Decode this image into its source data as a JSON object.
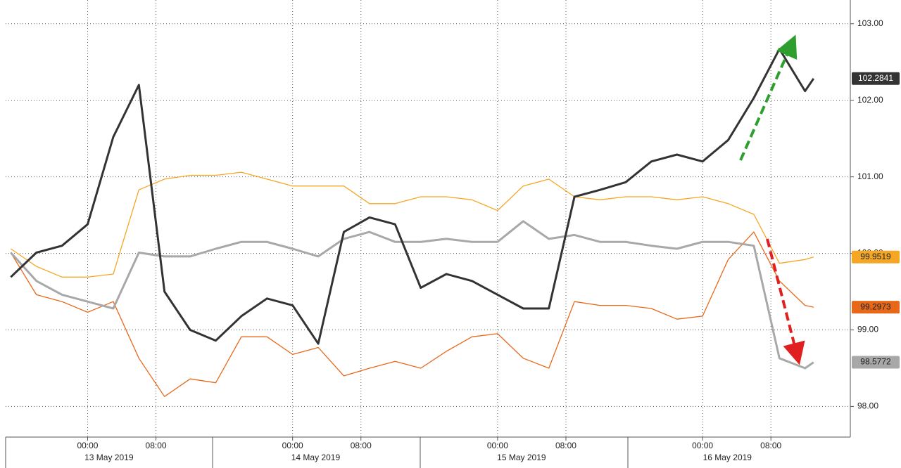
{
  "chart_data": {
    "type": "line",
    "x": [
      -9,
      -6,
      -3,
      0,
      3,
      6,
      9,
      12,
      15,
      18,
      21,
      24,
      27,
      30,
      33,
      36,
      39,
      42,
      45,
      48,
      51,
      54,
      57,
      60,
      63,
      66,
      69,
      72,
      75,
      78,
      81,
      84,
      85
    ],
    "series": [
      {
        "color": "#333333",
        "values": [
          99.69,
          100.01,
          100.1,
          100.38,
          101.52,
          102.2,
          99.5,
          99.0,
          98.86,
          99.18,
          99.41,
          99.32,
          98.82,
          100.28,
          100.47,
          100.38,
          99.55,
          99.73,
          99.64,
          99.46,
          99.28,
          99.28,
          100.74,
          100.83,
          100.93,
          101.2,
          101.29,
          101.2,
          101.48,
          102.03,
          102.67,
          102.12,
          102.2841
        ]
      },
      {
        "color": "#f5a623",
        "values": [
          100.06,
          99.83,
          99.69,
          99.69,
          99.73,
          100.83,
          100.97,
          101.02,
          101.02,
          101.06,
          100.97,
          100.88,
          100.88,
          100.88,
          100.65,
          100.65,
          100.74,
          100.74,
          100.7,
          100.56,
          100.88,
          100.97,
          100.74,
          100.7,
          100.74,
          100.74,
          100.7,
          100.74,
          100.65,
          100.51,
          99.87,
          99.92,
          99.9519
        ]
      },
      {
        "color": "#e8681a",
        "values": [
          100.01,
          99.46,
          99.37,
          99.23,
          99.37,
          98.63,
          98.13,
          98.36,
          98.31,
          98.91,
          98.91,
          98.68,
          98.77,
          98.4,
          98.5,
          98.59,
          98.5,
          98.72,
          98.91,
          98.95,
          98.63,
          98.5,
          99.37,
          99.32,
          99.32,
          99.28,
          99.14,
          99.18,
          99.92,
          100.28,
          99.64,
          99.32,
          99.2973
        ]
      },
      {
        "color": "#a8a8a8",
        "values": [
          100.01,
          99.64,
          99.46,
          99.37,
          99.28,
          100.01,
          99.96,
          99.96,
          100.06,
          100.15,
          100.15,
          100.06,
          99.96,
          100.19,
          100.28,
          100.15,
          100.15,
          100.19,
          100.15,
          100.15,
          100.42,
          100.19,
          100.24,
          100.15,
          100.15,
          100.1,
          100.06,
          100.15,
          100.15,
          100.1,
          98.63,
          98.5,
          98.5772
        ]
      }
    ],
    "xlim": [
      -9.6,
      89.3
    ],
    "xticks": [
      {
        "value": 0,
        "label": "00:00"
      },
      {
        "value": 8,
        "label": "08:00"
      },
      {
        "value": 24,
        "label": "00:00"
      },
      {
        "value": 32,
        "label": "08:00"
      },
      {
        "value": 48,
        "label": "00:00"
      },
      {
        "value": 56,
        "label": "08:00"
      },
      {
        "value": 72,
        "label": "00:00"
      },
      {
        "value": 80,
        "label": "08:00"
      }
    ],
    "x_date_labels": [
      {
        "value": 2.5,
        "label": "13 May 2019"
      },
      {
        "value": 26.7,
        "label": "14 May 2019"
      },
      {
        "value": 50.8,
        "label": "15 May 2019"
      },
      {
        "value": 74.9,
        "label": "16 May 2019"
      }
    ],
    "ylim": [
      97.6,
      103.31
    ],
    "yticks": [
      {
        "value": 98,
        "label": "98.00"
      },
      {
        "value": 99,
        "label": "99.00"
      },
      {
        "value": 100,
        "label": "100.00"
      },
      {
        "value": 101,
        "label": "101.00"
      },
      {
        "value": 102,
        "label": "102.00"
      },
      {
        "value": 103,
        "label": "103.00"
      }
    ],
    "grid": true
  }
}
